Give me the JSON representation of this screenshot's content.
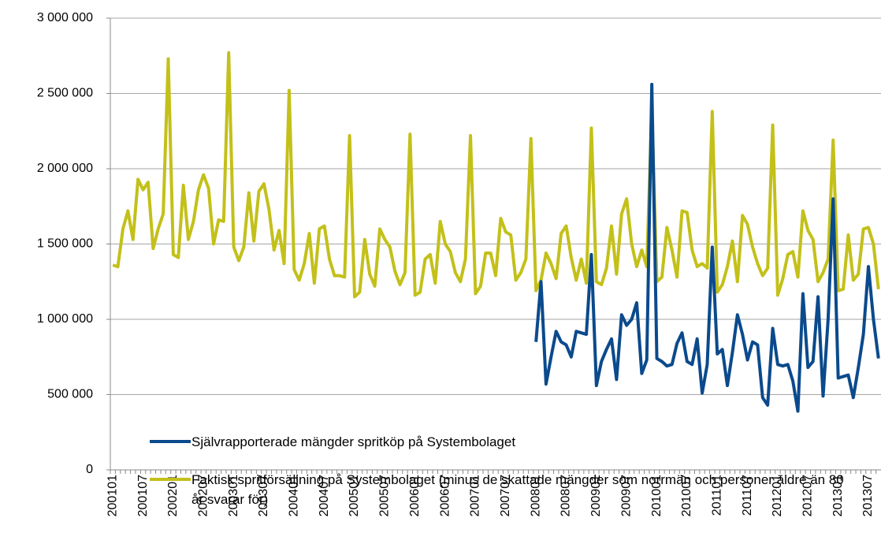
{
  "chart_data": {
    "type": "line",
    "categories": [
      "200101",
      null,
      null,
      null,
      null,
      null,
      "200107",
      null,
      null,
      null,
      null,
      null,
      "200201",
      null,
      null,
      null,
      null,
      null,
      "200207",
      null,
      null,
      null,
      null,
      null,
      "200301",
      null,
      null,
      null,
      null,
      null,
      "200307",
      null,
      null,
      null,
      null,
      null,
      "200401",
      null,
      null,
      null,
      null,
      null,
      "200407",
      null,
      null,
      null,
      null,
      null,
      "200501",
      null,
      null,
      null,
      null,
      null,
      "200507",
      null,
      null,
      null,
      null,
      null,
      "200601",
      null,
      null,
      null,
      null,
      null,
      "200607",
      null,
      null,
      null,
      null,
      null,
      "200701",
      null,
      null,
      null,
      null,
      null,
      "200707",
      null,
      null,
      null,
      null,
      null,
      "200801",
      null,
      null,
      null,
      null,
      null,
      "200807",
      null,
      null,
      null,
      null,
      null,
      "200901",
      null,
      null,
      null,
      null,
      null,
      "200907",
      null,
      null,
      null,
      null,
      null,
      "201001",
      null,
      null,
      null,
      null,
      null,
      "201007",
      null,
      null,
      null,
      null,
      null,
      "201101",
      null,
      null,
      null,
      null,
      null,
      "201107",
      null,
      null,
      null,
      null,
      null,
      "201201",
      null,
      null,
      null,
      null,
      null,
      "201207",
      null,
      null,
      null,
      null,
      null,
      "201301",
      null,
      null,
      null,
      null,
      null,
      "201307",
      null,
      null
    ],
    "series": [
      {
        "name": "Självrapporterade mängder spritköp på Systembolaget",
        "color": "#0b4a8c",
        "values": [
          null,
          null,
          null,
          null,
          null,
          null,
          null,
          null,
          null,
          null,
          null,
          null,
          null,
          null,
          null,
          null,
          null,
          null,
          null,
          null,
          null,
          null,
          null,
          null,
          null,
          null,
          null,
          null,
          null,
          null,
          null,
          null,
          null,
          null,
          null,
          null,
          null,
          null,
          null,
          null,
          null,
          null,
          null,
          null,
          null,
          null,
          null,
          null,
          null,
          null,
          null,
          null,
          null,
          null,
          null,
          null,
          null,
          null,
          null,
          null,
          null,
          null,
          null,
          null,
          null,
          null,
          null,
          null,
          null,
          null,
          null,
          null,
          null,
          null,
          null,
          null,
          null,
          null,
          null,
          null,
          null,
          null,
          null,
          null,
          850000,
          1250000,
          570000,
          750000,
          920000,
          850000,
          830000,
          750000,
          920000,
          910000,
          900000,
          1430000,
          560000,
          720000,
          800000,
          870000,
          600000,
          1030000,
          960000,
          1000000,
          1110000,
          640000,
          730000,
          2560000,
          740000,
          720000,
          690000,
          700000,
          840000,
          910000,
          720000,
          700000,
          870000,
          510000,
          700000,
          1480000,
          770000,
          800000,
          560000,
          780000,
          1030000,
          900000,
          730000,
          850000,
          830000,
          480000,
          430000,
          940000,
          700000,
          690000,
          700000,
          590000,
          390000,
          1170000,
          680000,
          720000,
          1150000,
          490000,
          1000000,
          1800000,
          610000,
          620000,
          630000,
          480000,
          680000,
          900000,
          1350000,
          1000000,
          740000
        ]
      },
      {
        "name": "Faktisk spritförsäljning på Systembolaget (minus de skattade mängder som norrmän och personer äldre än 80 år svarar för)",
        "color": "#c3c01a",
        "values": [
          1360000,
          1350000,
          1600000,
          1720000,
          1530000,
          1930000,
          1860000,
          1910000,
          1470000,
          1600000,
          1700000,
          2730000,
          1430000,
          1410000,
          1890000,
          1530000,
          1650000,
          1860000,
          1960000,
          1870000,
          1500000,
          1660000,
          1650000,
          2770000,
          1480000,
          1390000,
          1480000,
          1840000,
          1520000,
          1850000,
          1900000,
          1730000,
          1460000,
          1590000,
          1370000,
          2520000,
          1330000,
          1260000,
          1370000,
          1570000,
          1240000,
          1600000,
          1620000,
          1400000,
          1290000,
          1290000,
          1280000,
          2220000,
          1150000,
          1180000,
          1530000,
          1300000,
          1220000,
          1600000,
          1530000,
          1480000,
          1320000,
          1230000,
          1310000,
          2230000,
          1160000,
          1180000,
          1400000,
          1430000,
          1240000,
          1650000,
          1500000,
          1450000,
          1310000,
          1250000,
          1400000,
          2220000,
          1170000,
          1220000,
          1440000,
          1440000,
          1290000,
          1670000,
          1580000,
          1560000,
          1260000,
          1310000,
          1400000,
          2200000,
          1190000,
          1260000,
          1440000,
          1370000,
          1270000,
          1570000,
          1620000,
          1410000,
          1260000,
          1400000,
          1240000,
          2270000,
          1250000,
          1230000,
          1340000,
          1620000,
          1300000,
          1700000,
          1800000,
          1500000,
          1350000,
          1460000,
          1350000,
          2400000,
          1250000,
          1280000,
          1610000,
          1460000,
          1280000,
          1720000,
          1710000,
          1460000,
          1350000,
          1370000,
          1340000,
          2380000,
          1180000,
          1230000,
          1350000,
          1520000,
          1250000,
          1690000,
          1630000,
          1480000,
          1370000,
          1290000,
          1340000,
          2290000,
          1160000,
          1270000,
          1430000,
          1450000,
          1280000,
          1720000,
          1590000,
          1530000,
          1250000,
          1310000,
          1400000,
          2190000,
          1190000,
          1200000,
          1560000,
          1260000,
          1300000,
          1600000,
          1610000,
          1500000,
          1200000
        ]
      }
    ],
    "ylim": [
      0,
      3000000
    ],
    "yticks": [
      0,
      {
        "value": 500000,
        "label": "500 000"
      },
      {
        "value": 1000000,
        "label": "1 000 000"
      },
      {
        "value": 1500000,
        "label": "1 500 000"
      },
      {
        "value": 2000000,
        "label": "2 000 000"
      },
      {
        "value": 2500000,
        "label": "2 500 000"
      },
      {
        "value": 3000000,
        "label": "3 000 000"
      }
    ],
    "grid": true,
    "legend": "lower left"
  }
}
